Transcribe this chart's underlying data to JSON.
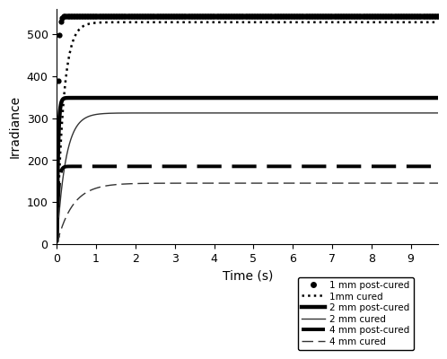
{
  "title": "",
  "xlabel": "Time (s)",
  "ylabel": "Irradiance",
  "xlim": [
    0,
    9.7
  ],
  "ylim": [
    0,
    560
  ],
  "yticks": [
    0,
    100,
    200,
    300,
    400,
    500
  ],
  "xticks": [
    0,
    1,
    2,
    3,
    4,
    5,
    6,
    7,
    8,
    9
  ],
  "series": [
    {
      "label": "1 mm post-cured",
      "style": "dots",
      "color": "#000000",
      "lw": 2.0,
      "a_rise": 35,
      "b_plateau": 543,
      "c_onset": 0.0,
      "dot_n": 280,
      "dot_size": 4.5
    },
    {
      "label": "1mm cured",
      "style": "dotted",
      "color": "#000000",
      "lw": 1.8,
      "a_rise": 6.0,
      "b_plateau": 528,
      "c_onset": 0.0
    },
    {
      "label": "2 mm post-cured",
      "style": "solid_bold",
      "color": "#000000",
      "lw": 3.2,
      "a_rise": 30,
      "b_plateau": 348,
      "c_onset": 0.0
    },
    {
      "label": "2 mm cured",
      "style": "solid_thin",
      "color": "#333333",
      "lw": 1.0,
      "a_rise": 4.5,
      "b_plateau": 312,
      "c_onset": 0.0
    },
    {
      "label": "4 mm post-cured",
      "style": "dashed_bold",
      "color": "#000000",
      "lw": 2.8,
      "a_rise": 25,
      "b_plateau": 185,
      "c_onset": 0.0
    },
    {
      "label": "4 mm cured",
      "style": "dashed_thin",
      "color": "#333333",
      "lw": 1.0,
      "a_rise": 2.5,
      "b_plateau": 145,
      "c_onset": 0.0
    }
  ],
  "legend_fontsize": 7.5,
  "axis_fontsize": 10,
  "tick_fontsize": 9
}
